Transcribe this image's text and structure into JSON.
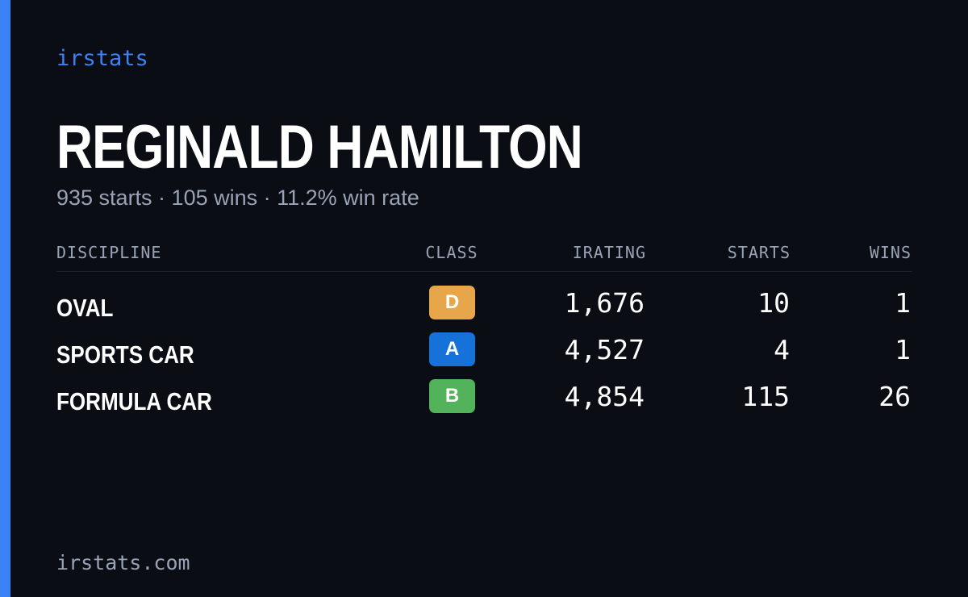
{
  "brand": "irstats",
  "driver": {
    "name": "REGINALD HAMILTON",
    "summary": "935 starts · 105 wins · 11.2% win rate"
  },
  "table": {
    "headers": {
      "discipline": "DISCIPLINE",
      "class": "CLASS",
      "irating": "IRATING",
      "starts": "STARTS",
      "wins": "WINS"
    },
    "rows": [
      {
        "discipline": "OVAL",
        "class": "D",
        "class_color": "#e8a64a",
        "irating": "1,676",
        "starts": "10",
        "wins": "1"
      },
      {
        "discipline": "SPORTS CAR",
        "class": "A",
        "class_color": "#1672d8",
        "irating": "4,527",
        "starts": "4",
        "wins": "1"
      },
      {
        "discipline": "FORMULA CAR",
        "class": "B",
        "class_color": "#52b35a",
        "irating": "4,854",
        "starts": "115",
        "wins": "26"
      }
    ]
  },
  "footer": {
    "url": "irstats.com"
  },
  "colors": {
    "background": "#0a0d14",
    "accent": "#3b82f6",
    "muted_text": "#9aa3b5"
  }
}
